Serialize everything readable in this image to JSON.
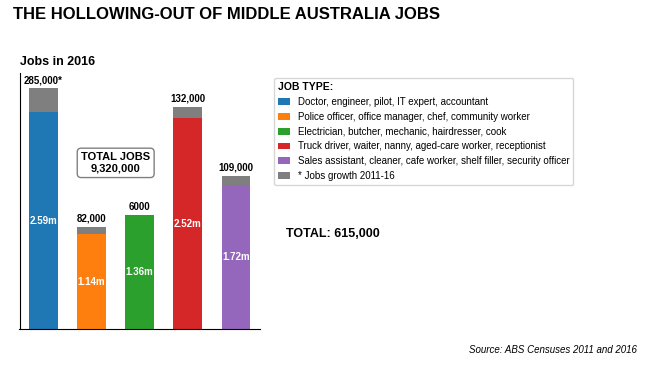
{
  "chart_data": {
    "type": "bar",
    "stacked": true,
    "title": "THE HOLLOWING-OUT OF MIDDLE AUSTRALIA JOBS",
    "subtitle": "Jobs in 2016",
    "categories": [
      "Doctor, engineer, pilot, IT expert, accountant",
      "Police officer, office manager, chef, community worker",
      "Electrician, butcher, mechanic, hairdresser, cook",
      "Truck driver, waiter, nanny, aged-care worker, receptionist",
      "Sales assistant, cleaner, cafe worker, shelf filler, security officer"
    ],
    "series": [
      {
        "colors": [
          "#1f77b4",
          "#ff7f0e",
          "#2ca02c",
          "#d62728",
          "#9467bd"
        ],
        "values": [
          2590000,
          1140000,
          1360000,
          2520000,
          1720000
        ],
        "value_labels": [
          "2.59m",
          "1.14m",
          "1.36m",
          "2.52m",
          "1.72m"
        ]
      },
      {
        "name": "* Jobs growth 2011-16",
        "color": "#7f7f7f",
        "values": [
          285000,
          82000,
          6000,
          132000,
          109000
        ],
        "value_labels": [
          "285,000*",
          "82,000",
          "6000",
          "132,000",
          "109,000"
        ]
      }
    ],
    "ylim": [
      0,
      3050000
    ],
    "yticks": [],
    "tick_labels": false,
    "data_labels": true,
    "legend": "right",
    "legend_title": "JOB TYPE:",
    "annotations": [
      "TOTAL JOBS\n9,320,000",
      "TOTAL: 615,000"
    ],
    "source": "Source: ABS Censuses 2011 and 2016"
  }
}
